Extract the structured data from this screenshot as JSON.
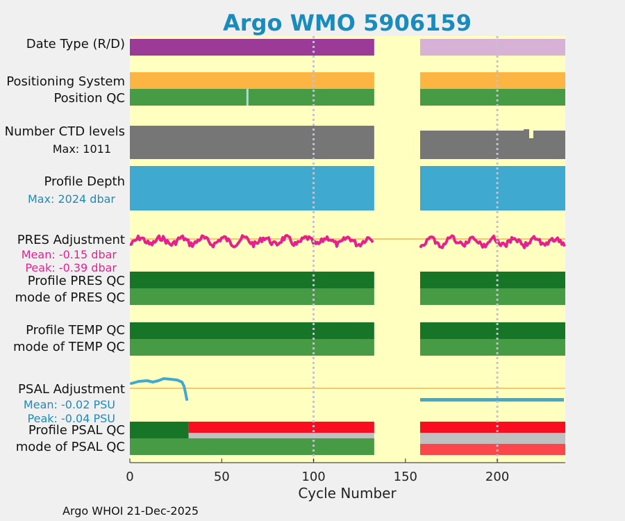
{
  "chart_data": {
    "type": "bar",
    "title": "Argo WMO 5906159",
    "xlabel": "Cycle Number",
    "xlim": [
      0,
      237
    ],
    "xticks": [
      0,
      50,
      100,
      150,
      200
    ],
    "grid_x": [
      100,
      200
    ],
    "gap": [
      133,
      158
    ],
    "footer": "Argo WHOI 21-Dec-2025",
    "rows": {
      "date_type": {
        "label": "Date Type (R/D)",
        "colors": [
          "#9b3a97",
          "#d8b1d7"
        ]
      },
      "positioning_system": {
        "label": "Positioning System",
        "color": "#fcb443"
      },
      "position_qc": {
        "label": "Position QC",
        "color": "#489b45",
        "outlier_cycle": 64,
        "outlier_color": "#add8e6"
      },
      "ctd_levels": {
        "label": "Number CTD levels",
        "max_label": "Max: 1011",
        "color": "#767676"
      },
      "profile_depth": {
        "label": "Profile Depth",
        "max_label": "Max: 2024 dbar",
        "color": "#40a9cf"
      },
      "pres_adjustment": {
        "label": "PRES Adjustment",
        "mean_label": "Mean: -0.15 dbar",
        "peak_label": "Peak: -0.39 dbar",
        "color": "#e8208e"
      },
      "profile_pres_qc": {
        "label": "Profile PRES QC"
      },
      "mode_pres_qc": {
        "label": "mode of PRES QC"
      },
      "profile_temp_qc": {
        "label": "Profile TEMP QC"
      },
      "mode_temp_qc": {
        "label": "mode of TEMP QC"
      },
      "psal_adjustment": {
        "label": "PSAL Adjustment",
        "mean_label": "Mean: -0.02 PSU",
        "peak_label": "Peak: -0.04 PSU",
        "color": "#40a9cf"
      },
      "profile_psal_qc": {
        "label": "Profile PSAL QC"
      },
      "mode_psal_qc": {
        "label": "mode of PSAL QC"
      }
    },
    "colors": {
      "plot_bg": "#ffffc0",
      "title": "#1a8bbd",
      "qc_dark": "#177528",
      "qc_mid": "#489b45",
      "qc_red": "#f90d20",
      "qc_gray": "#c0c0c0",
      "qc_salmon": "#fb474b",
      "ref_line": "#f5b34a",
      "grid": "#c2c2d0",
      "pres_text": "#e8208e",
      "psal_text": "#1a8bbd"
    }
  }
}
